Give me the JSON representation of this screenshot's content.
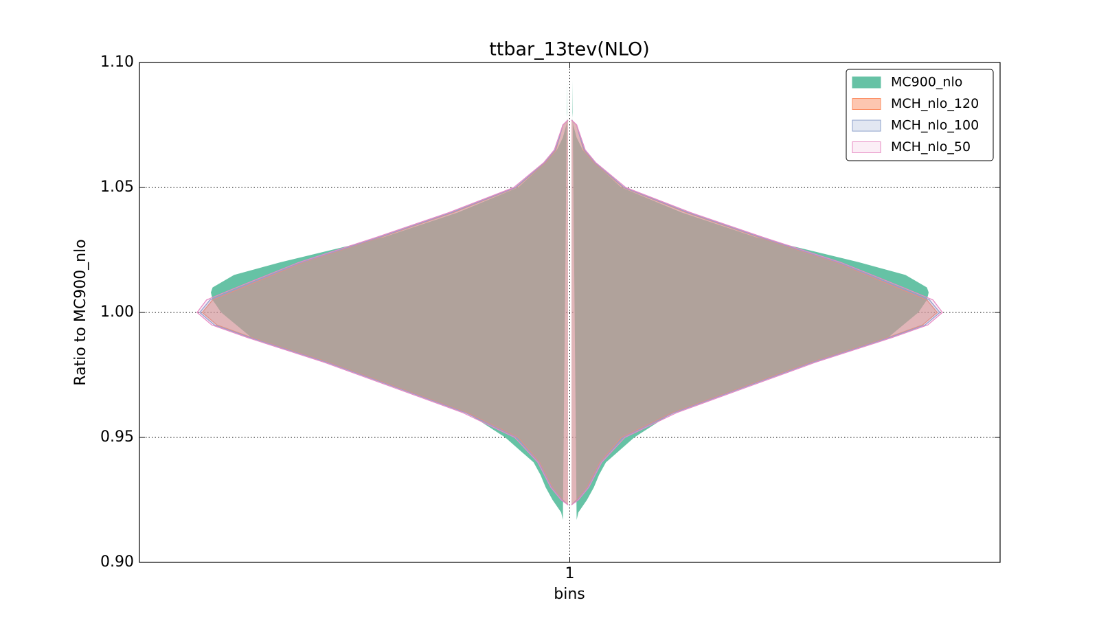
{
  "chart_data": {
    "type": "violin",
    "title": "ttbar_13tev(NLO)",
    "x_label": "bins",
    "y_label": "Ratio to MC900_nlo",
    "categories": [
      "1"
    ],
    "xlim": [
      0.5,
      1.5
    ],
    "xticks": [
      {
        "value": 1,
        "label": "1"
      }
    ],
    "ylim": [
      0.9,
      1.1
    ],
    "yticks": [
      {
        "value": 0.9,
        "label": "0.90"
      },
      {
        "value": 0.95,
        "label": "0.95"
      },
      {
        "value": 1.0,
        "label": "1.00"
      },
      {
        "value": 1.05,
        "label": "1.05"
      },
      {
        "value": 1.1,
        "label": "1.10"
      }
    ],
    "grid": true,
    "legend": "upper right",
    "series": [
      {
        "name": "MC900_nlo",
        "color": "#66c2a5",
        "fill_opacity": 1,
        "y": [
          1.093,
          1.08,
          1.075,
          1.07,
          1.065,
          1.06,
          1.05,
          1.04,
          1.03,
          1.02,
          1.015,
          1.01,
          1.008,
          1.005,
          1.0,
          0.99,
          0.98,
          0.97,
          0.96,
          0.95,
          0.94,
          0.935,
          0.93,
          0.925,
          0.92,
          0.917
        ],
        "values": [
          0.003,
          0.003,
          0.004,
          0.008,
          0.015,
          0.028,
          0.06,
          0.13,
          0.217,
          0.337,
          0.39,
          0.415,
          0.417,
          0.415,
          0.405,
          0.37,
          0.28,
          0.2,
          0.12,
          0.075,
          0.042,
          0.034,
          0.028,
          0.02,
          0.01,
          0.008
        ]
      },
      {
        "name": "MCH_nlo_120",
        "color": "#fc8d62",
        "fill_opacity": 0.5,
        "y": [
          1.077,
          1.075,
          1.07,
          1.065,
          1.06,
          1.05,
          1.04,
          1.03,
          1.02,
          1.01,
          1.005,
          1.0,
          0.995,
          0.99,
          0.98,
          0.97,
          0.96,
          0.95,
          0.94,
          0.93,
          0.925,
          0.923
        ],
        "values": [
          0.002,
          0.008,
          0.012,
          0.016,
          0.028,
          0.062,
          0.135,
          0.22,
          0.31,
          0.38,
          0.415,
          0.427,
          0.41,
          0.37,
          0.28,
          0.2,
          0.12,
          0.06,
          0.035,
          0.02,
          0.008,
          0.002
        ]
      },
      {
        "name": "MCH_nlo_100",
        "color": "#8da0cb",
        "fill_opacity": 0.25,
        "y": [
          1.077,
          1.075,
          1.07,
          1.065,
          1.06,
          1.05,
          1.04,
          1.03,
          1.02,
          1.01,
          1.005,
          1.0,
          0.995,
          0.99,
          0.98,
          0.97,
          0.96,
          0.95,
          0.94,
          0.93,
          0.925,
          0.923
        ],
        "values": [
          0.002,
          0.008,
          0.012,
          0.017,
          0.029,
          0.063,
          0.137,
          0.222,
          0.312,
          0.383,
          0.418,
          0.43,
          0.413,
          0.372,
          0.282,
          0.202,
          0.122,
          0.062,
          0.036,
          0.021,
          0.009,
          0.002
        ]
      },
      {
        "name": "MCH_nlo_50",
        "color": "#e78ac3",
        "fill_opacity": 0.15,
        "y": [
          1.077,
          1.075,
          1.07,
          1.065,
          1.06,
          1.05,
          1.04,
          1.03,
          1.02,
          1.01,
          1.005,
          1.0,
          0.995,
          0.99,
          0.98,
          0.97,
          0.96,
          0.95,
          0.94,
          0.93,
          0.925,
          0.923
        ],
        "values": [
          0.002,
          0.008,
          0.013,
          0.018,
          0.03,
          0.065,
          0.14,
          0.225,
          0.315,
          0.387,
          0.422,
          0.433,
          0.416,
          0.375,
          0.285,
          0.205,
          0.125,
          0.064,
          0.037,
          0.022,
          0.01,
          0.002
        ]
      }
    ]
  }
}
